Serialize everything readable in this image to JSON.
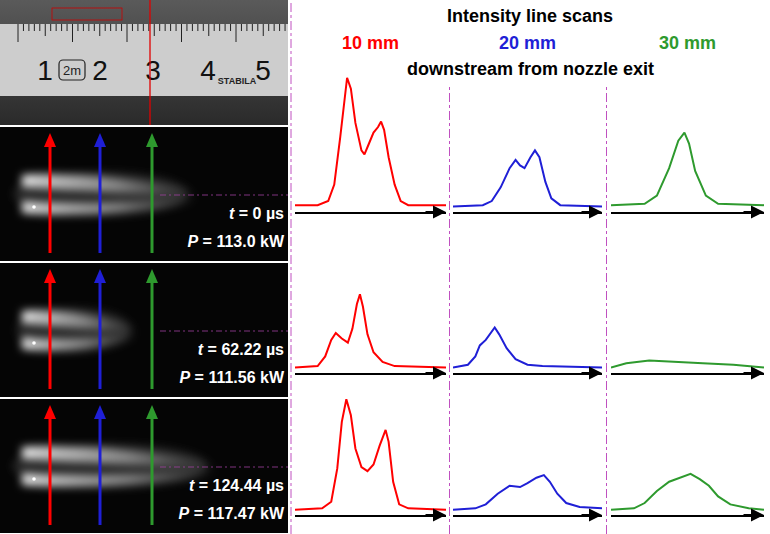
{
  "header": {
    "title": "Intensity line scans",
    "distances": [
      "10 mm",
      "20 mm",
      "30 mm"
    ],
    "subtitle": "downstream from nozzle exit"
  },
  "images": {
    "ruler": {
      "numbers": [
        "1",
        "2",
        "3",
        "4",
        "5"
      ],
      "labels": [
        "2m",
        "STABILA"
      ]
    },
    "frames": [
      {
        "time": "t = 0 µs",
        "power": "P = 113.0 kW"
      },
      {
        "time": "t = 62.22 µs",
        "power": "P = 111.56 kW"
      },
      {
        "time": "t = 124.44 µs",
        "power": "P = 117.47 kW"
      }
    ]
  },
  "chart_data": [
    {
      "type": "line",
      "color": "#ff0000",
      "xlim": [
        0,
        100
      ],
      "ylim": [
        0,
        100
      ],
      "tick_labels": false,
      "grid": false,
      "x": [
        0,
        15,
        22,
        26,
        30,
        33,
        34.5,
        37,
        40,
        44,
        46,
        49,
        52,
        55,
        57,
        59,
        62,
        66,
        70,
        75,
        100
      ],
      "values": [
        5,
        5,
        8,
        20,
        55,
        85,
        98,
        90,
        65,
        45,
        42,
        50,
        58,
        62,
        66,
        60,
        40,
        20,
        8,
        5,
        5
      ]
    },
    {
      "type": "line",
      "color": "#1f1fd6",
      "xlim": [
        0,
        100
      ],
      "ylim": [
        0,
        100
      ],
      "tick_labels": false,
      "grid": false,
      "x": [
        0,
        20,
        26,
        32,
        38,
        42,
        45,
        48,
        52,
        55,
        58,
        62,
        66,
        72,
        100
      ],
      "values": [
        4,
        5,
        8,
        18,
        32,
        38,
        34,
        32,
        40,
        45,
        40,
        22,
        10,
        5,
        4
      ]
    },
    {
      "type": "line",
      "color": "#2e9a2e",
      "xlim": [
        0,
        100
      ],
      "ylim": [
        0,
        100
      ],
      "tick_labels": false,
      "grid": false,
      "x": [
        0,
        22,
        30,
        38,
        44,
        48,
        51,
        55,
        62,
        70,
        100
      ],
      "values": [
        5,
        6,
        12,
        32,
        52,
        58,
        50,
        30,
        12,
        6,
        5
      ]
    },
    {
      "type": "line",
      "color": "#ff0000",
      "xlim": [
        0,
        100
      ],
      "ylim": [
        0,
        100
      ],
      "tick_labels": false,
      "grid": false,
      "x": [
        0,
        15,
        20,
        24,
        27,
        31,
        35,
        38,
        41,
        43,
        45,
        48,
        52,
        58,
        66,
        100
      ],
      "values": [
        4,
        5,
        12,
        24,
        29,
        25,
        22,
        32,
        50,
        57,
        48,
        28,
        15,
        8,
        5,
        4
      ]
    },
    {
      "type": "line",
      "color": "#1f1fd6",
      "xlim": [
        0,
        100
      ],
      "ylim": [
        0,
        100
      ],
      "tick_labels": false,
      "grid": false,
      "x": [
        0,
        10,
        15,
        18,
        22,
        26,
        28,
        31,
        36,
        42,
        50,
        60,
        100
      ],
      "values": [
        4,
        6,
        12,
        20,
        24,
        30,
        33,
        28,
        18,
        10,
        6,
        5,
        4
      ]
    },
    {
      "type": "line",
      "color": "#2e9a2e",
      "xlim": [
        0,
        100
      ],
      "ylim": [
        0,
        100
      ],
      "tick_labels": false,
      "grid": false,
      "x": [
        0,
        10,
        25,
        40,
        60,
        80,
        92,
        100
      ],
      "values": [
        4,
        7,
        9,
        8,
        7,
        6,
        5,
        4
      ]
    },
    {
      "type": "line",
      "color": "#ff0000",
      "xlim": [
        0,
        100
      ],
      "ylim": [
        0,
        100
      ],
      "tick_labels": false,
      "grid": false,
      "x": [
        0,
        18,
        24,
        28,
        31,
        34,
        37,
        40,
        44,
        48,
        52,
        56,
        60,
        62,
        65,
        69,
        75,
        100
      ],
      "values": [
        4,
        5,
        10,
        35,
        70,
        87,
        75,
        50,
        36,
        33,
        38,
        52,
        64,
        55,
        25,
        8,
        5,
        4
      ]
    },
    {
      "type": "line",
      "color": "#1f1fd6",
      "xlim": [
        0,
        100
      ],
      "ylim": [
        0,
        100
      ],
      "tick_labels": false,
      "grid": false,
      "x": [
        0,
        15,
        22,
        30,
        38,
        45,
        50,
        56,
        61,
        65,
        70,
        76,
        85,
        100
      ],
      "values": [
        4,
        5,
        8,
        16,
        22,
        21,
        24,
        28,
        30,
        25,
        16,
        9,
        6,
        5
      ]
    },
    {
      "type": "line",
      "color": "#2e9a2e",
      "xlim": [
        0,
        100
      ],
      "ylim": [
        0,
        100
      ],
      "tick_labels": false,
      "grid": false,
      "x": [
        0,
        15,
        22,
        30,
        38,
        45,
        52,
        58,
        64,
        70,
        78,
        90,
        100
      ],
      "values": [
        4,
        5,
        9,
        18,
        25,
        28,
        31,
        27,
        22,
        14,
        8,
        5,
        4
      ]
    }
  ]
}
